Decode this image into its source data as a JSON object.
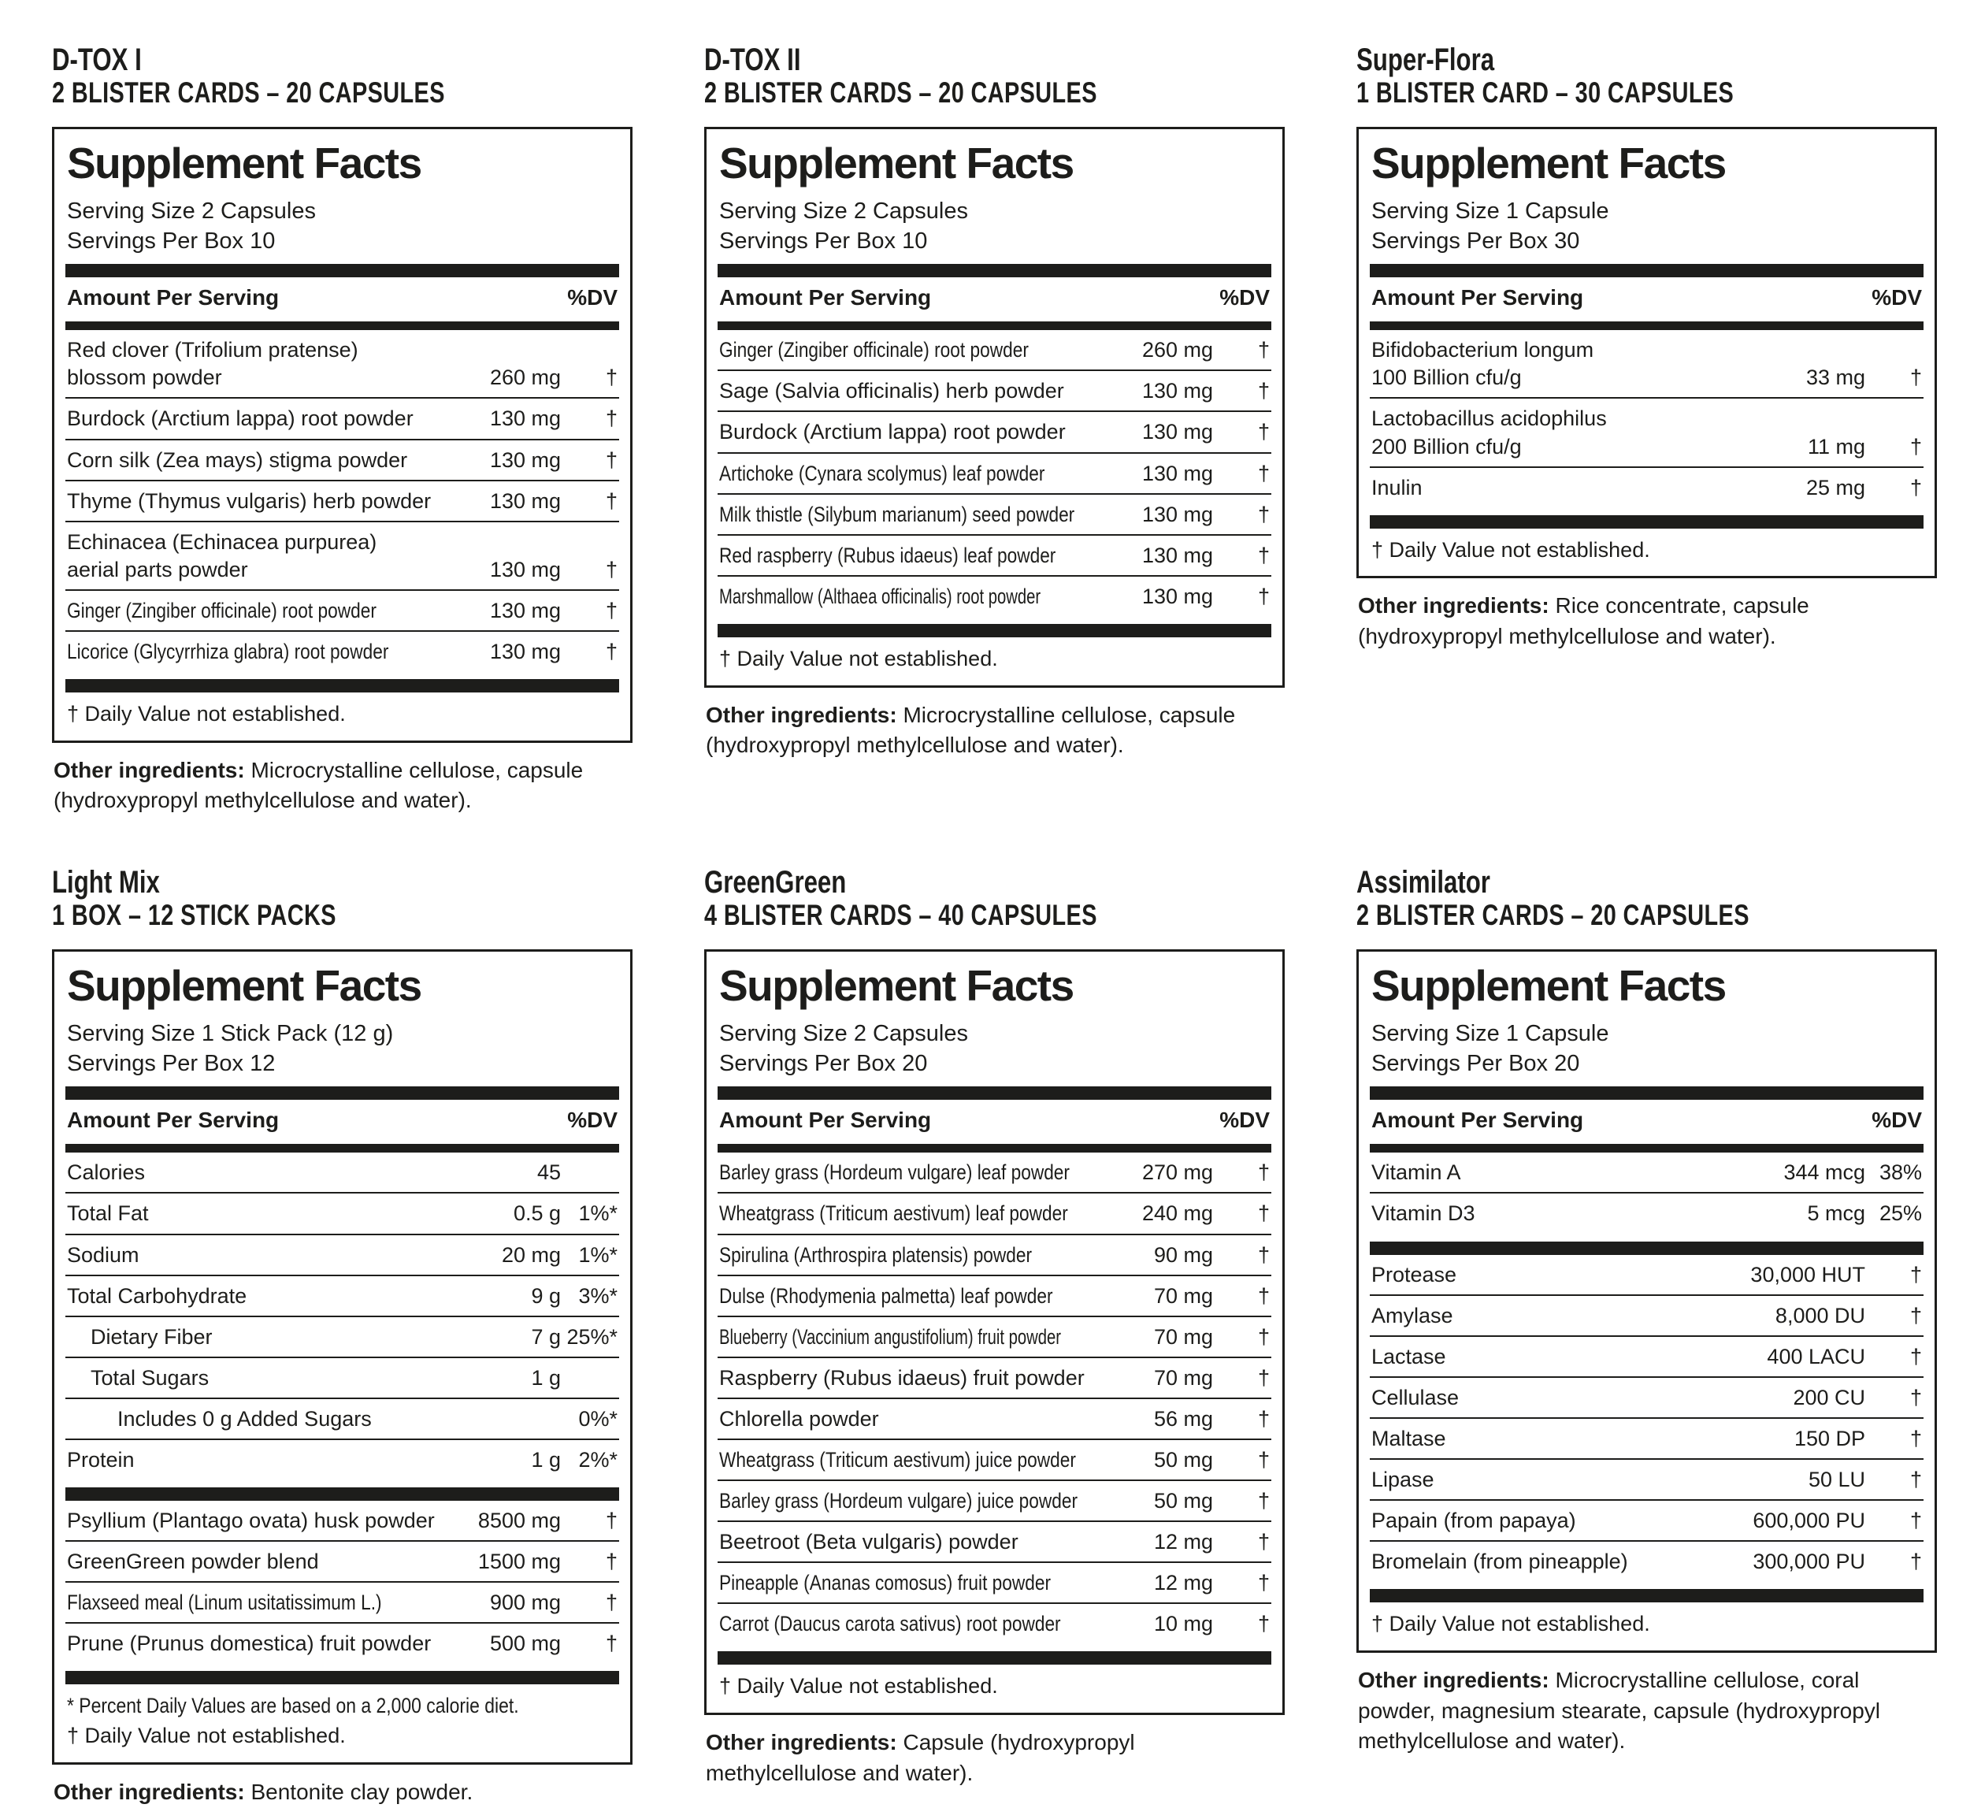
{
  "panels": [
    {
      "title": "D-TOX I",
      "subtitle": "2 BLISTER CARDS – 20 CAPSULES",
      "facts_title": "Supplement Facts",
      "serving_size": "Serving Size 2 Capsules",
      "servings_per": "Servings Per Box 10",
      "amount_header": "Amount Per Serving",
      "dv_header": "%DV",
      "sections": [
        [
          {
            "lines": [
              "Red clover (Trifolium pratense)",
              "blossom powder"
            ],
            "indent": 0,
            "amount": "260 mg",
            "dv": "†"
          },
          {
            "lines": [
              "Burdock (Arctium lappa) root powder"
            ],
            "indent": 0,
            "amount": "130 mg",
            "dv": "†"
          },
          {
            "lines": [
              "Corn silk (Zea mays) stigma powder"
            ],
            "indent": 0,
            "amount": "130 mg",
            "dv": "†"
          },
          {
            "lines": [
              "Thyme (Thymus vulgaris) herb powder"
            ],
            "indent": 0,
            "amount": "130 mg",
            "dv": "†"
          },
          {
            "lines": [
              "Echinacea (Echinacea purpurea)",
              "aerial parts powder"
            ],
            "indent": 0,
            "amount": "130 mg",
            "dv": "†"
          },
          {
            "lines": [
              "Ginger (Zingiber officinale) root powder"
            ],
            "indent": 0,
            "amount": "130 mg",
            "dv": "†"
          },
          {
            "lines": [
              "Licorice (Glycyrrhiza glabra) root powder"
            ],
            "indent": 0,
            "amount": "130 mg",
            "dv": "†"
          }
        ]
      ],
      "footnotes": [
        "† Daily Value not established."
      ],
      "other_label": "Other ingredients:",
      "other_text": "Microcrystalline cellulose, capsule (hydroxypropyl methylcellulose and water)."
    },
    {
      "title": "D-TOX II",
      "subtitle": "2 BLISTER CARDS – 20 CAPSULES",
      "facts_title": "Supplement Facts",
      "serving_size": "Serving Size 2 Capsules",
      "servings_per": "Servings Per Box 10",
      "amount_header": "Amount Per Serving",
      "dv_header": "%DV",
      "sections": [
        [
          {
            "lines": [
              "Ginger (Zingiber officinale) root powder"
            ],
            "indent": 0,
            "amount": "260 mg",
            "dv": "†"
          },
          {
            "lines": [
              "Sage (Salvia officinalis) herb powder"
            ],
            "indent": 0,
            "amount": "130 mg",
            "dv": "†"
          },
          {
            "lines": [
              "Burdock (Arctium lappa) root powder"
            ],
            "indent": 0,
            "amount": "130 mg",
            "dv": "†"
          },
          {
            "lines": [
              "Artichoke (Cynara scolymus) leaf powder"
            ],
            "indent": 0,
            "amount": "130 mg",
            "dv": "†"
          },
          {
            "lines": [
              "Milk thistle (Silybum marianum) seed powder"
            ],
            "indent": 0,
            "amount": "130 mg",
            "dv": "†"
          },
          {
            "lines": [
              "Red raspberry (Rubus idaeus) leaf powder"
            ],
            "indent": 0,
            "amount": "130 mg",
            "dv": "†"
          },
          {
            "lines": [
              "Marshmallow (Althaea officinalis) root powder"
            ],
            "indent": 0,
            "amount": "130 mg",
            "dv": "†"
          }
        ]
      ],
      "footnotes": [
        "† Daily Value not established."
      ],
      "other_label": "Other ingredients:",
      "other_text": "Microcrystalline cellulose, capsule (hydroxypropyl methylcellulose and water)."
    },
    {
      "title": "Super-Flora",
      "subtitle": "1 BLISTER CARD – 30 CAPSULES",
      "facts_title": "Supplement Facts",
      "serving_size": "Serving Size 1 Capsule",
      "servings_per": "Servings Per Box 30",
      "amount_header": "Amount Per Serving",
      "dv_header": "%DV",
      "sections": [
        [
          {
            "lines": [
              "Bifidobacterium longum",
              "100 Billion cfu/g"
            ],
            "indent": 0,
            "amount": "33 mg",
            "dv": "†"
          },
          {
            "lines": [
              "Lactobacillus acidophilus",
              "200 Billion cfu/g"
            ],
            "indent": 0,
            "amount": "11 mg",
            "dv": "†"
          },
          {
            "lines": [
              "Inulin"
            ],
            "indent": 0,
            "amount": "25 mg",
            "dv": "†"
          }
        ]
      ],
      "footnotes": [
        "† Daily Value not established."
      ],
      "other_label": "Other ingredients:",
      "other_text": "Rice concentrate, capsule (hydroxypropyl methylcellulose and water)."
    },
    {
      "title": "Light Mix",
      "subtitle": "1 BOX – 12 STICK PACKS",
      "facts_title": "Supplement Facts",
      "serving_size": "Serving Size 1 Stick Pack (12 g)",
      "servings_per": "Servings Per Box 12",
      "amount_header": "Amount Per Serving",
      "dv_header": "%DV",
      "sections": [
        [
          {
            "lines": [
              "Calories"
            ],
            "indent": 0,
            "amount": "45",
            "dv": ""
          },
          {
            "lines": [
              "Total Fat"
            ],
            "indent": 0,
            "amount": "0.5 g",
            "dv": "1%*"
          },
          {
            "lines": [
              "Sodium"
            ],
            "indent": 0,
            "amount": "20 mg",
            "dv": "1%*"
          },
          {
            "lines": [
              "Total Carbohydrate"
            ],
            "indent": 0,
            "amount": "9 g",
            "dv": "3%*"
          },
          {
            "lines": [
              "Dietary Fiber"
            ],
            "indent": 1,
            "amount": "7 g",
            "dv": "25%*"
          },
          {
            "lines": [
              "Total Sugars"
            ],
            "indent": 1,
            "amount": "1 g",
            "dv": ""
          },
          {
            "lines": [
              "Includes 0 g Added Sugars"
            ],
            "indent": 2,
            "amount": "",
            "dv": "0%*"
          },
          {
            "lines": [
              "Protein"
            ],
            "indent": 0,
            "amount": "1 g",
            "dv": "2%*"
          }
        ],
        [
          {
            "lines": [
              "Psyllium (Plantago ovata) husk powder"
            ],
            "indent": 0,
            "amount": "8500 mg",
            "dv": "†"
          },
          {
            "lines": [
              "GreenGreen powder blend"
            ],
            "indent": 0,
            "amount": "1500 mg",
            "dv": "†"
          },
          {
            "lines": [
              "Flaxseed meal (Linum usitatissimum L.)"
            ],
            "indent": 0,
            "amount": "900 mg",
            "dv": "†"
          },
          {
            "lines": [
              "Prune (Prunus domestica) fruit powder"
            ],
            "indent": 0,
            "amount": "500 mg",
            "dv": "†"
          }
        ]
      ],
      "footnotes": [
        "* Percent Daily Values are based on  a 2,000 calorie diet.",
        "† Daily Value not established."
      ],
      "other_label": "Other ingredients:",
      "other_text": "Bentonite clay powder."
    },
    {
      "title": "GreenGreen",
      "subtitle": "4 BLISTER CARDS – 40 CAPSULES",
      "facts_title": "Supplement Facts",
      "serving_size": "Serving Size 2 Capsules",
      "servings_per": "Servings Per Box 20",
      "amount_header": "Amount Per Serving",
      "dv_header": "%DV",
      "sections": [
        [
          {
            "lines": [
              "Barley grass (Hordeum vulgare) leaf powder"
            ],
            "indent": 0,
            "amount": "270 mg",
            "dv": "†"
          },
          {
            "lines": [
              "Wheatgrass (Triticum aestivum) leaf powder"
            ],
            "indent": 0,
            "amount": "240 mg",
            "dv": "†"
          },
          {
            "lines": [
              "Spirulina (Arthrospira platensis) powder"
            ],
            "indent": 0,
            "amount": "90 mg",
            "dv": "†"
          },
          {
            "lines": [
              "Dulse (Rhodymenia palmetta) leaf powder"
            ],
            "indent": 0,
            "amount": "70 mg",
            "dv": "†"
          },
          {
            "lines": [
              "Blueberry (Vaccinium angustifolium) fruit powder"
            ],
            "indent": 0,
            "amount": "70 mg",
            "dv": "†"
          },
          {
            "lines": [
              "Raspberry (Rubus idaeus) fruit powder"
            ],
            "indent": 0,
            "amount": "70 mg",
            "dv": "†"
          },
          {
            "lines": [
              "Chlorella powder"
            ],
            "indent": 0,
            "amount": "56 mg",
            "dv": "†"
          },
          {
            "lines": [
              "Wheatgrass (Triticum aestivum) juice powder"
            ],
            "indent": 0,
            "amount": "50 mg",
            "dv": "†"
          },
          {
            "lines": [
              "Barley grass (Hordeum vulgare) juice powder"
            ],
            "indent": 0,
            "amount": "50 mg",
            "dv": "†"
          },
          {
            "lines": [
              "Beetroot (Beta vulgaris) powder"
            ],
            "indent": 0,
            "amount": "12 mg",
            "dv": "†"
          },
          {
            "lines": [
              "Pineapple (Ananas comosus) fruit powder"
            ],
            "indent": 0,
            "amount": "12 mg",
            "dv": "†"
          },
          {
            "lines": [
              "Carrot (Daucus carota sativus) root powder"
            ],
            "indent": 0,
            "amount": "10 mg",
            "dv": "†"
          }
        ]
      ],
      "footnotes": [
        "† Daily Value not established."
      ],
      "other_label": "Other ingredients:",
      "other_text": "Capsule (hydroxypropyl methylcellulose and water)."
    },
    {
      "title": "Assimilator",
      "subtitle": "2 BLISTER CARDS – 20 CAPSULES",
      "facts_title": "Supplement Facts",
      "serving_size": "Serving Size 1 Capsule",
      "servings_per": "Servings Per Box 20",
      "amount_header": "Amount Per Serving",
      "dv_header": "%DV",
      "sections": [
        [
          {
            "lines": [
              "Vitamin A"
            ],
            "indent": 0,
            "amount": "344 mcg",
            "dv": "38%"
          },
          {
            "lines": [
              "Vitamin D3"
            ],
            "indent": 0,
            "amount": "5 mcg",
            "dv": "25%"
          }
        ],
        [
          {
            "lines": [
              "Protease"
            ],
            "indent": 0,
            "amount": "30,000 HUT",
            "dv": "†"
          },
          {
            "lines": [
              "Amylase"
            ],
            "indent": 0,
            "amount": "8,000 DU",
            "dv": "†"
          },
          {
            "lines": [
              "Lactase"
            ],
            "indent": 0,
            "amount": "400 LACU",
            "dv": "†"
          },
          {
            "lines": [
              "Cellulase"
            ],
            "indent": 0,
            "amount": "200 CU",
            "dv": "†"
          },
          {
            "lines": [
              "Maltase"
            ],
            "indent": 0,
            "amount": "150 DP",
            "dv": "†"
          },
          {
            "lines": [
              "Lipase"
            ],
            "indent": 0,
            "amount": "50 LU",
            "dv": "†"
          },
          {
            "lines": [
              "Papain (from papaya)"
            ],
            "indent": 0,
            "amount": "600,000 PU",
            "dv": "†"
          },
          {
            "lines": [
              "Bromelain (from pineapple)"
            ],
            "indent": 0,
            "amount": "300,000 PU",
            "dv": "†"
          }
        ]
      ],
      "footnotes": [
        "† Daily Value not established."
      ],
      "other_label": "Other ingredients:",
      "other_text": "Microcrystalline cellulose, coral powder, magnesium stearate, capsule (hydroxypropyl methylcellulose and water)."
    }
  ]
}
